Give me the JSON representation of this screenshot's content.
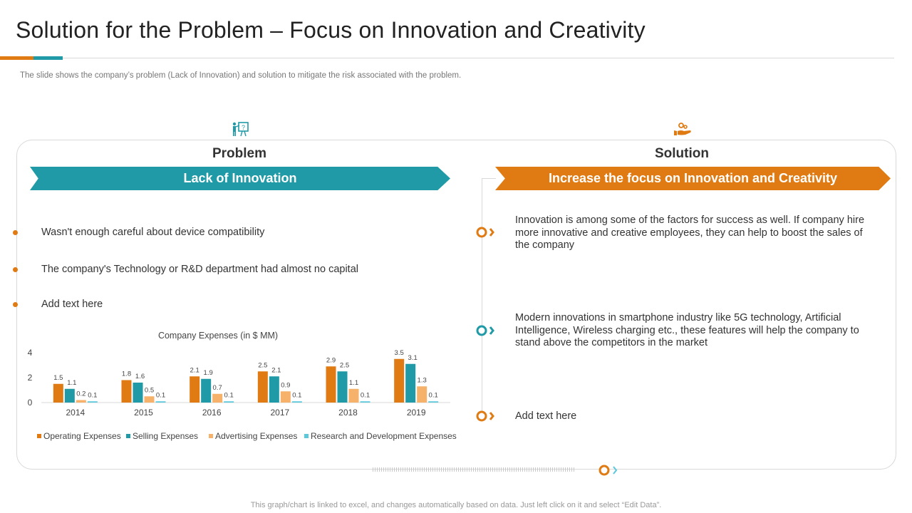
{
  "title": "Solution for the Problem – Focus on Innovation and Creativity",
  "subtitle": "The slide shows the company’s problem (Lack of Innovation)  and solution to mitigate the risk associated with the problem.",
  "problem": {
    "heading": "Problem",
    "banner": "Lack of Innovation",
    "bullets": [
      "Wasn't enough careful about device compatibility",
      "The company's Technology or R&D department had almost no capital",
      "Add text here"
    ]
  },
  "solution": {
    "heading": "Solution",
    "banner": "Increase the focus on Innovation and Creativity",
    "points": [
      "Innovation  is among some of the factors for success as well. If company hire more innovative  and creative employees, they can help to boost the sales of the company",
      "Modern innovations in smartphone industry like 5G technology, Artificial Intelligence, Wireless charging etc., these features will help the company to stand above the competitors in the market",
      "Add text here"
    ]
  },
  "footer": "This graph/chart is linked to excel,  and changes automatically based on data. Just left click on it and select “Edit Data”.",
  "colors": {
    "orange": "#e07b14",
    "teal": "#1f9aa6",
    "light_orange": "#f6b26b",
    "light_blue": "#5bc8dc"
  },
  "icons": {
    "problem": "presentation-question-icon",
    "solution": "hand-gears-icon"
  },
  "chart_data": {
    "type": "bar",
    "title": "Company  Expenses (in $ MM)",
    "categories": [
      "2014",
      "2015",
      "2016",
      "2017",
      "2018",
      "2019"
    ],
    "series": [
      {
        "name": "Operating Expenses",
        "values": [
          1.5,
          1.8,
          2.1,
          2.5,
          2.9,
          3.5
        ],
        "labels": [
          "1.5",
          "1.8",
          "2.1",
          "2.5",
          "2.9",
          "3.5"
        ]
      },
      {
        "name": "Selling Expenses",
        "values": [
          1.1,
          1.6,
          1.9,
          2.1,
          2.5,
          3.1
        ],
        "labels": [
          "1.1",
          "1.6",
          "1.9",
          "2.1",
          "2.5",
          "3.1"
        ]
      },
      {
        "name": "Advertising Expenses",
        "values": [
          0.2,
          0.5,
          0.7,
          0.9,
          1.1,
          1.3
        ],
        "labels": [
          "0.2",
          "0.5",
          "0.7",
          "0.9",
          "1.1",
          "1.3"
        ]
      },
      {
        "name": "Research and Development Expenses",
        "values": [
          0.1,
          0.1,
          0.1,
          0.1,
          0.1,
          0.1
        ],
        "labels": [
          "0.1",
          "0.1",
          "0.1",
          "0.1",
          "0.1",
          "0.1"
        ]
      }
    ],
    "yticks": [
      "0",
      "2",
      "4"
    ],
    "ylim": [
      0,
      4
    ],
    "legend": "bottom"
  }
}
